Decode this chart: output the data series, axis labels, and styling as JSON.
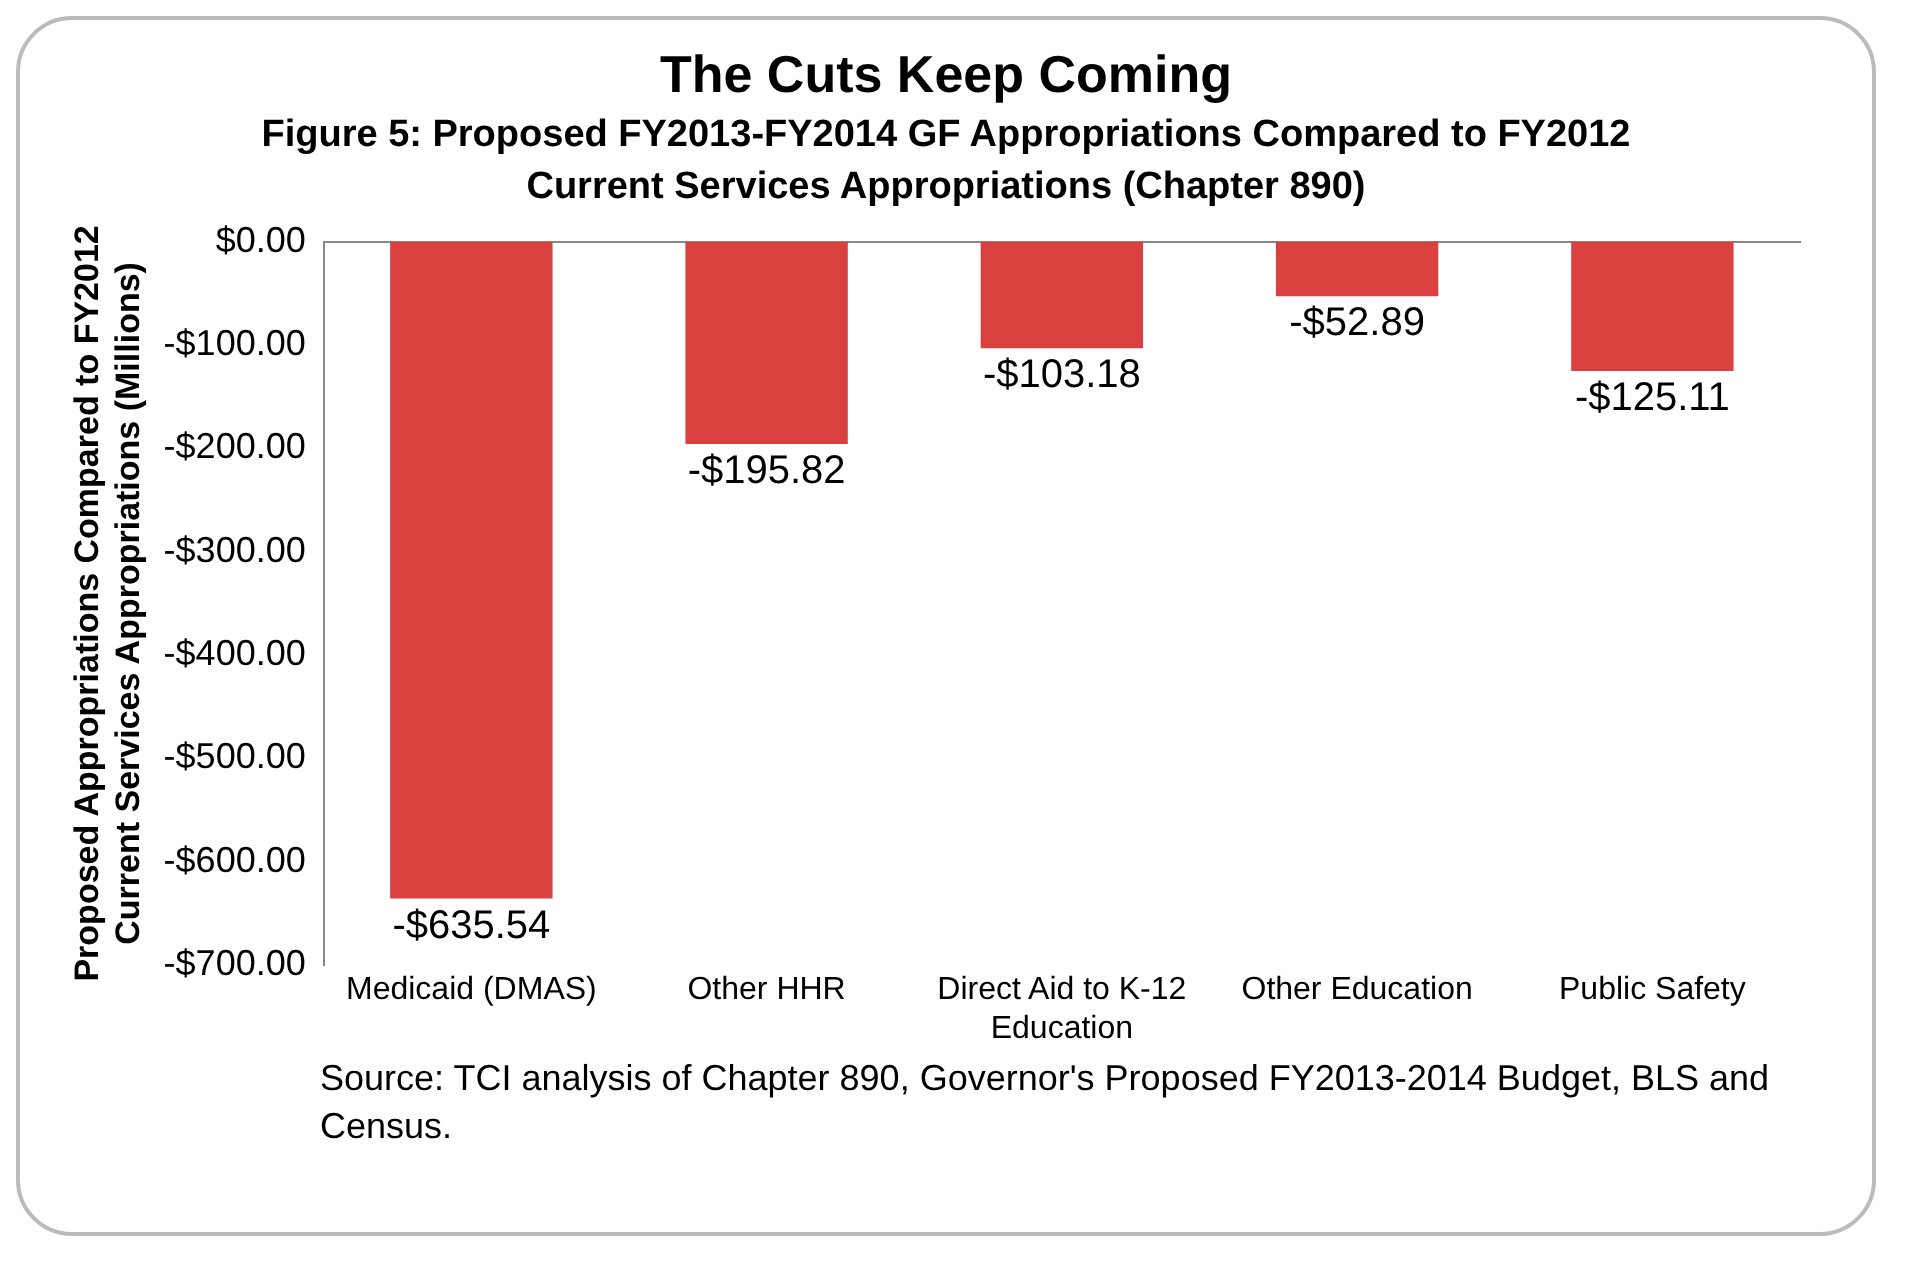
{
  "chart_data": {
    "type": "bar",
    "title": "The Cuts Keep Coming",
    "subtitle": "Figure 5: Proposed FY2013-FY2014 GF Appropriations Compared to FY2012 Current Services Appropriations (Chapter 890)",
    "ylabel": "Proposed Appropriations Compared to FY2012 Current Services Appropriations (Millions)",
    "categories": [
      "Medicaid (DMAS)",
      "Other HHR",
      "Direct Aid to K-12 Education",
      "Other Education",
      "Public Safety"
    ],
    "values": [
      -635.54,
      -195.82,
      -103.18,
      -52.89,
      -125.11
    ],
    "value_labels": [
      "-$635.54",
      "-$195.82",
      "-$103.18",
      "-$52.89",
      "-$125.11"
    ],
    "color": "#d94040",
    "ylim": [
      -700,
      0
    ],
    "yticks": [
      {
        "value": 0,
        "label": "$0.00"
      },
      {
        "value": -100,
        "label": "-$100.00"
      },
      {
        "value": -200,
        "label": "-$200.00"
      },
      {
        "value": -300,
        "label": "-$300.00"
      },
      {
        "value": -400,
        "label": "-$400.00"
      },
      {
        "value": -500,
        "label": "-$500.00"
      },
      {
        "value": -600,
        "label": "-$600.00"
      },
      {
        "value": -700,
        "label": "-$700.00"
      }
    ],
    "grid": false,
    "legend": false,
    "annotations": [
      "Source:  TCI analysis of Chapter 890, Governor's Proposed FY2013-2014 Budget, BLS and Census."
    ]
  }
}
